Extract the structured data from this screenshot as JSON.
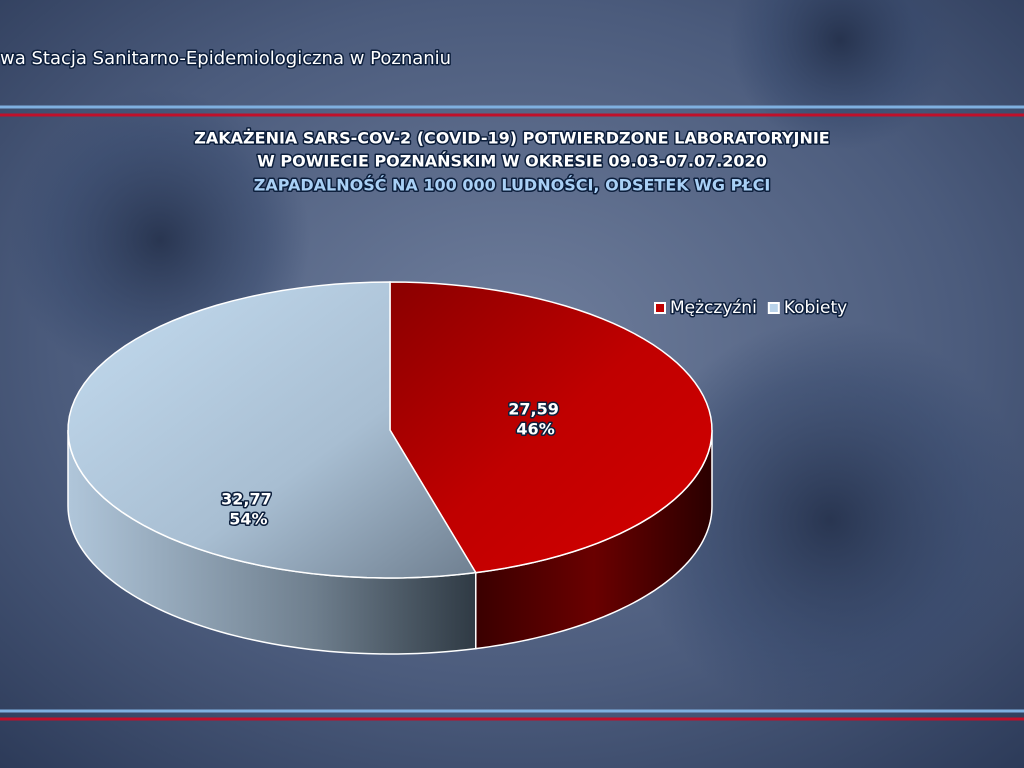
{
  "header": {
    "text": "wa Stacja Sanitarno-Epidemiologiczna w Poznaniu"
  },
  "chart_data": {
    "type": "pie3d",
    "title": [
      "ZAKAŻENIA SARS-COV-2 (COVID-19) POTWIERDZONE LABORATORYJNIE",
      "W POWIECIE POZNAŃSKIM W OKRESIE 09.03-07.07.2020"
    ],
    "subtitle": "ZAPADALNOŚĆ NA 100 000 LUDNOŚCI, ODSETEK WG PŁCI",
    "categories": [
      "Mężczyźni",
      "Kobiety"
    ],
    "values": [
      27.59,
      32.77
    ],
    "value_labels": [
      "27,59",
      "32,77"
    ],
    "percents": [
      {
        "value": 46,
        "label": "46%"
      },
      {
        "value": 54,
        "label": "54%"
      }
    ],
    "colors": [
      "#c00000",
      "#b9d3ea"
    ],
    "legend": "top-right"
  }
}
